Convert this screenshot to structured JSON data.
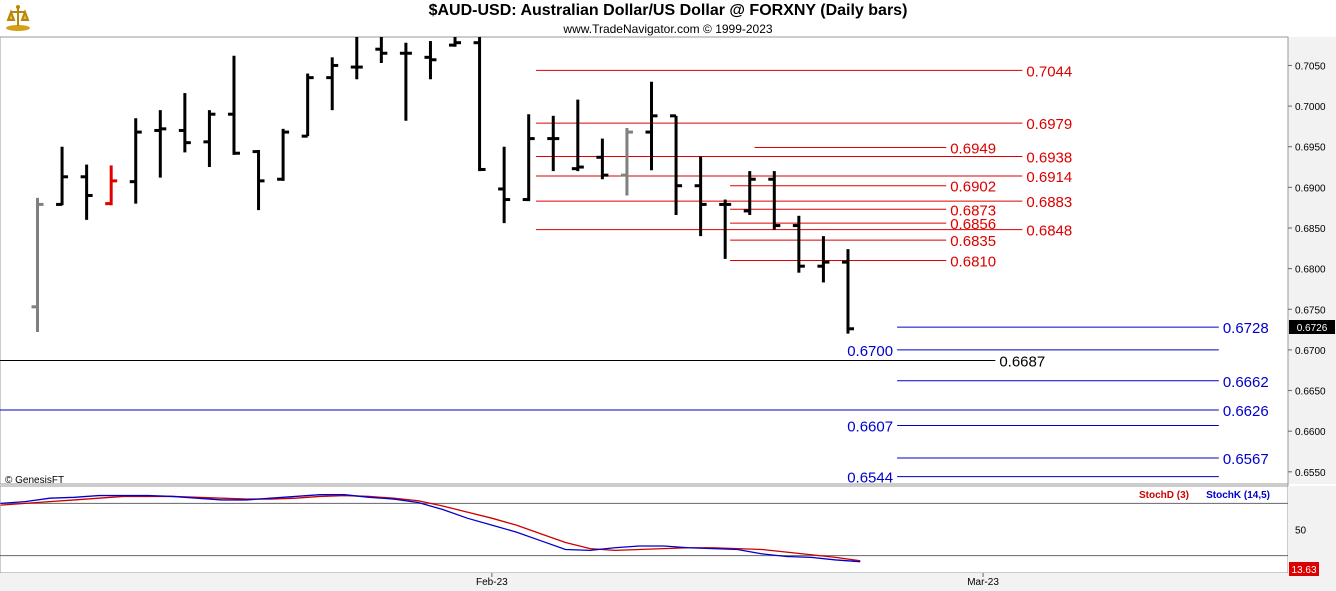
{
  "header": {
    "title": "$AUD-USD:  Australian Dollar/US Dollar @ FORXNY  (Daily bars)",
    "subtitle": "www.TradeNavigator.com © 1999-2023",
    "copyright": "© GenesisFT"
  },
  "colors": {
    "bar": "#000000",
    "bar_gray": "#808080",
    "bar_red": "#e00000",
    "fib_red": "#dd0000",
    "level_blue": "#0000cc",
    "stoch_d": "#cc0000",
    "stoch_k": "#0000cc",
    "axis_bg": "#f2f2f2"
  },
  "chart_data": [
    {
      "type": "bar",
      "subtype": "ohlc",
      "ylim": [
        0.6535,
        0.7085
      ],
      "yticks": [
        "0.6550",
        "0.6600",
        "0.6650",
        "0.6700",
        "0.6750",
        "0.6800",
        "0.6850",
        "0.6900",
        "0.6950",
        "0.7000",
        "0.7050"
      ],
      "xticks": [
        {
          "label": "Feb-23",
          "index": 18.5
        },
        {
          "label": "Mar-23",
          "index": 38.5
        }
      ],
      "last_price": "0.6726",
      "bars": [
        {
          "o": 0.6753,
          "h": 0.6887,
          "l": 0.6722,
          "c": 0.6879,
          "color": "gray"
        },
        {
          "o": 0.6879,
          "h": 0.695,
          "l": 0.6878,
          "c": 0.6913,
          "color": "black"
        },
        {
          "o": 0.6913,
          "h": 0.6928,
          "l": 0.686,
          "c": 0.689,
          "color": "black"
        },
        {
          "o": 0.688,
          "h": 0.6927,
          "l": 0.6878,
          "c": 0.6908,
          "color": "red"
        },
        {
          "o": 0.6907,
          "h": 0.6985,
          "l": 0.688,
          "c": 0.6968,
          "color": "black"
        },
        {
          "o": 0.697,
          "h": 0.6995,
          "l": 0.6912,
          "c": 0.6972,
          "color": "black"
        },
        {
          "o": 0.697,
          "h": 0.7016,
          "l": 0.6943,
          "c": 0.6955,
          "color": "black"
        },
        {
          "o": 0.6956,
          "h": 0.6995,
          "l": 0.6925,
          "c": 0.699,
          "color": "black"
        },
        {
          "o": 0.699,
          "h": 0.7062,
          "l": 0.694,
          "c": 0.6942,
          "color": "black"
        },
        {
          "o": 0.6944,
          "h": 0.6946,
          "l": 0.6872,
          "c": 0.6908,
          "color": "black"
        },
        {
          "o": 0.691,
          "h": 0.6972,
          "l": 0.6908,
          "c": 0.6968,
          "color": "black"
        },
        {
          "o": 0.6963,
          "h": 0.704,
          "l": 0.6963,
          "c": 0.7035,
          "color": "black"
        },
        {
          "o": 0.7035,
          "h": 0.706,
          "l": 0.6995,
          "c": 0.705,
          "color": "black"
        },
        {
          "o": 0.7048,
          "h": 0.7085,
          "l": 0.7033,
          "c": 0.7048,
          "color": "black"
        },
        {
          "o": 0.707,
          "h": 0.71,
          "l": 0.7053,
          "c": 0.7065,
          "color": "black"
        },
        {
          "o": 0.7065,
          "h": 0.7078,
          "l": 0.6982,
          "c": 0.7065,
          "color": "black"
        },
        {
          "o": 0.706,
          "h": 0.708,
          "l": 0.7033,
          "c": 0.7057,
          "color": "black"
        },
        {
          "o": 0.7075,
          "h": 0.71,
          "l": 0.7073,
          "c": 0.7078,
          "color": "black"
        },
        {
          "o": 0.7078,
          "h": 0.711,
          "l": 0.692,
          "c": 0.6922,
          "color": "black"
        },
        {
          "o": 0.6898,
          "h": 0.695,
          "l": 0.6856,
          "c": 0.6885,
          "color": "black"
        },
        {
          "o": 0.6885,
          "h": 0.699,
          "l": 0.6883,
          "c": 0.696,
          "color": "black"
        },
        {
          "o": 0.696,
          "h": 0.6988,
          "l": 0.692,
          "c": 0.696,
          "color": "black"
        },
        {
          "o": 0.6923,
          "h": 0.7008,
          "l": 0.692,
          "c": 0.6925,
          "color": "black"
        },
        {
          "o": 0.6937,
          "h": 0.696,
          "l": 0.691,
          "c": 0.6915,
          "color": "black"
        },
        {
          "o": 0.6915,
          "h": 0.6973,
          "l": 0.689,
          "c": 0.6968,
          "color": "gray"
        },
        {
          "o": 0.6968,
          "h": 0.703,
          "l": 0.6921,
          "c": 0.6988,
          "color": "black"
        },
        {
          "o": 0.6988,
          "h": 0.6988,
          "l": 0.6866,
          "c": 0.6902,
          "color": "black"
        },
        {
          "o": 0.6902,
          "h": 0.6938,
          "l": 0.684,
          "c": 0.6879,
          "color": "black"
        },
        {
          "o": 0.6879,
          "h": 0.6885,
          "l": 0.6812,
          "c": 0.6879,
          "color": "black"
        },
        {
          "o": 0.6871,
          "h": 0.692,
          "l": 0.6866,
          "c": 0.691,
          "color": "black"
        },
        {
          "o": 0.691,
          "h": 0.692,
          "l": 0.6848,
          "c": 0.6853,
          "color": "black"
        },
        {
          "o": 0.6853,
          "h": 0.6865,
          "l": 0.6795,
          "c": 0.6803,
          "color": "black"
        },
        {
          "o": 0.6803,
          "h": 0.684,
          "l": 0.6783,
          "c": 0.6808,
          "color": "black"
        },
        {
          "o": 0.6808,
          "h": 0.6824,
          "l": 0.672,
          "c": 0.6726,
          "color": "black"
        }
      ],
      "levels": [
        {
          "value": 0.7044,
          "label": "0.7044",
          "color": "red",
          "from": 20.3,
          "to": 40.1,
          "label_side": "right"
        },
        {
          "value": 0.6979,
          "label": "0.6979",
          "color": "red",
          "from": 20.3,
          "to": 40.1,
          "label_side": "right"
        },
        {
          "value": 0.6949,
          "label": "0.6949",
          "color": "red",
          "from": 29.2,
          "to": 37.0,
          "label_side": "right"
        },
        {
          "value": 0.6938,
          "label": "0.6938",
          "color": "red",
          "from": 20.3,
          "to": 40.1,
          "label_side": "right"
        },
        {
          "value": 0.6914,
          "label": "0.6914",
          "color": "red",
          "from": 20.3,
          "to": 40.1,
          "label_side": "right"
        },
        {
          "value": 0.6902,
          "label": "0.6902",
          "color": "red",
          "from": 28.2,
          "to": 37.0,
          "label_side": "right"
        },
        {
          "value": 0.6883,
          "label": "0.6883",
          "color": "red",
          "from": 20.3,
          "to": 40.1,
          "label_side": "right"
        },
        {
          "value": 0.6873,
          "label": "0.6873",
          "color": "red",
          "from": 28.2,
          "to": 37.0,
          "label_side": "right"
        },
        {
          "value": 0.6856,
          "label": "0.6856",
          "color": "red",
          "from": 28.2,
          "to": 37.0,
          "label_side": "right"
        },
        {
          "value": 0.6848,
          "label": "0.6848",
          "color": "red",
          "from": 20.3,
          "to": 40.1,
          "label_side": "right"
        },
        {
          "value": 0.6835,
          "label": "0.6835",
          "color": "red",
          "from": 28.2,
          "to": 37.0,
          "label_side": "right"
        },
        {
          "value": 0.681,
          "label": "0.6810",
          "color": "red",
          "from": 28.2,
          "to": 37.0,
          "label_side": "right"
        },
        {
          "value": 0.6728,
          "label": "0.6728",
          "color": "blue",
          "from": 35.0,
          "to": 48.1,
          "label_side": "right"
        },
        {
          "value": 0.67,
          "label": "0.6700",
          "color": "blue",
          "from": 35.0,
          "to": 48.1,
          "label_side": "left"
        },
        {
          "value": 0.6687,
          "label": "0.6687",
          "color": "black",
          "from": -1.6,
          "to": 39.0,
          "label_side": "right"
        },
        {
          "value": 0.6662,
          "label": "0.6662",
          "color": "blue",
          "from": 35.0,
          "to": 48.1,
          "label_side": "right"
        },
        {
          "value": 0.6626,
          "label": "0.6626",
          "color": "blue",
          "from": -1.6,
          "to": 48.1,
          "label_side": "right"
        },
        {
          "value": 0.6607,
          "label": "0.6607",
          "color": "blue",
          "from": 35.0,
          "to": 48.1,
          "label_side": "left"
        },
        {
          "value": 0.6567,
          "label": "0.6567",
          "color": "blue",
          "from": 35.0,
          "to": 48.1,
          "label_side": "right"
        },
        {
          "value": 0.6544,
          "label": "0.6544",
          "color": "blue",
          "from": 35.0,
          "to": 48.1,
          "label_side": "left"
        }
      ]
    },
    {
      "type": "line",
      "ylim": [
        0,
        100
      ],
      "yticks": [
        "50"
      ],
      "reference_lines": [
        80,
        20
      ],
      "last_value": "13.63",
      "legend": [
        "StochD (3)",
        "StochK (14,5)"
      ],
      "series": [
        {
          "name": "StochD (3)",
          "color": "red",
          "values": [
            78,
            80,
            82,
            84,
            86,
            88,
            88,
            88,
            87,
            86,
            85,
            85,
            86,
            88,
            89,
            88,
            86,
            83,
            77,
            70,
            63,
            55,
            45,
            35,
            28,
            26,
            27,
            28,
            29,
            29,
            28,
            27,
            24,
            21,
            18,
            14
          ]
        },
        {
          "name": "StochK (14,5)",
          "color": "blue",
          "values": [
            80,
            82,
            86,
            87,
            89,
            89,
            89,
            88,
            86,
            84,
            84,
            86,
            88,
            90,
            90,
            87,
            85,
            81,
            73,
            63,
            55,
            47,
            37,
            27,
            26,
            29,
            31,
            31,
            29,
            28,
            27,
            22,
            19,
            18,
            15,
            13
          ]
        }
      ]
    }
  ]
}
